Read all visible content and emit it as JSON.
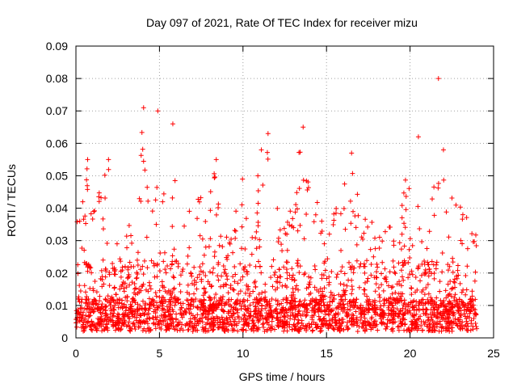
{
  "chart_data": {
    "type": "scatter",
    "title": "Day 097 of 2021, Rate Of TEC Index for receiver mizu",
    "xlabel": "GPS time / hours",
    "ylabel": "ROTI / TECUs",
    "xlim": [
      0,
      25
    ],
    "ylim": [
      0,
      0.09
    ],
    "xticks": [
      0,
      5,
      10,
      15,
      20,
      25
    ],
    "xtick_labels": [
      "0",
      "5",
      "10",
      "15",
      "20",
      "25"
    ],
    "yticks": [
      0,
      0.01,
      0.02,
      0.03,
      0.04,
      0.05,
      0.06,
      0.07,
      0.08,
      0.09
    ],
    "ytick_labels": [
      "0",
      "0.01",
      "0.02",
      "0.03",
      "0.04",
      "0.05",
      "0.06",
      "0.07",
      "0.08",
      "0.09"
    ],
    "grid": true,
    "marker": "+",
    "color": "#ff0000",
    "x_extent": [
      0,
      24
    ],
    "envelope": [
      [
        0.0,
        0.035
      ],
      [
        0.3,
        0.04
      ],
      [
        0.6,
        0.055
      ],
      [
        1.0,
        0.038
      ],
      [
        1.5,
        0.048
      ],
      [
        1.9,
        0.055
      ],
      [
        2.4,
        0.03
      ],
      [
        3.0,
        0.04
      ],
      [
        3.5,
        0.028
      ],
      [
        4.0,
        0.07
      ],
      [
        4.4,
        0.06
      ],
      [
        4.9,
        0.07
      ],
      [
        5.3,
        0.045
      ],
      [
        5.9,
        0.065
      ],
      [
        6.3,
        0.038
      ],
      [
        6.8,
        0.04
      ],
      [
        7.3,
        0.05
      ],
      [
        7.8,
        0.035
      ],
      [
        8.3,
        0.055
      ],
      [
        8.8,
        0.03
      ],
      [
        9.4,
        0.035
      ],
      [
        9.9,
        0.054
      ],
      [
        10.4,
        0.04
      ],
      [
        11.0,
        0.057
      ],
      [
        11.5,
        0.063
      ],
      [
        12.0,
        0.045
      ],
      [
        12.5,
        0.035
      ],
      [
        13.0,
        0.045
      ],
      [
        13.5,
        0.065
      ],
      [
        14.0,
        0.05
      ],
      [
        14.5,
        0.042
      ],
      [
        15.0,
        0.035
      ],
      [
        15.5,
        0.04
      ],
      [
        16.0,
        0.045
      ],
      [
        16.4,
        0.057
      ],
      [
        17.0,
        0.04
      ],
      [
        17.5,
        0.035
      ],
      [
        18.0,
        0.038
      ],
      [
        18.5,
        0.036
      ],
      [
        19.0,
        0.04
      ],
      [
        19.5,
        0.045
      ],
      [
        20.0,
        0.055
      ],
      [
        20.5,
        0.062
      ],
      [
        20.9,
        0.03
      ],
      [
        21.3,
        0.045
      ],
      [
        21.7,
        0.058
      ],
      [
        22.1,
        0.055
      ],
      [
        22.6,
        0.045
      ],
      [
        23.1,
        0.04
      ],
      [
        23.6,
        0.038
      ],
      [
        24.0,
        0.032
      ]
    ],
    "outliers": [
      [
        21.7,
        0.08
      ],
      [
        4.05,
        0.071
      ],
      [
        4.9,
        0.07
      ],
      [
        13.6,
        0.065
      ],
      [
        11.5,
        0.063
      ],
      [
        20.5,
        0.062
      ],
      [
        5.8,
        0.066
      ],
      [
        16.5,
        0.057
      ],
      [
        22.0,
        0.058
      ],
      [
        8.4,
        0.055
      ],
      [
        0.7,
        0.055
      ],
      [
        1.95,
        0.055
      ],
      [
        11.1,
        0.058
      ]
    ]
  }
}
